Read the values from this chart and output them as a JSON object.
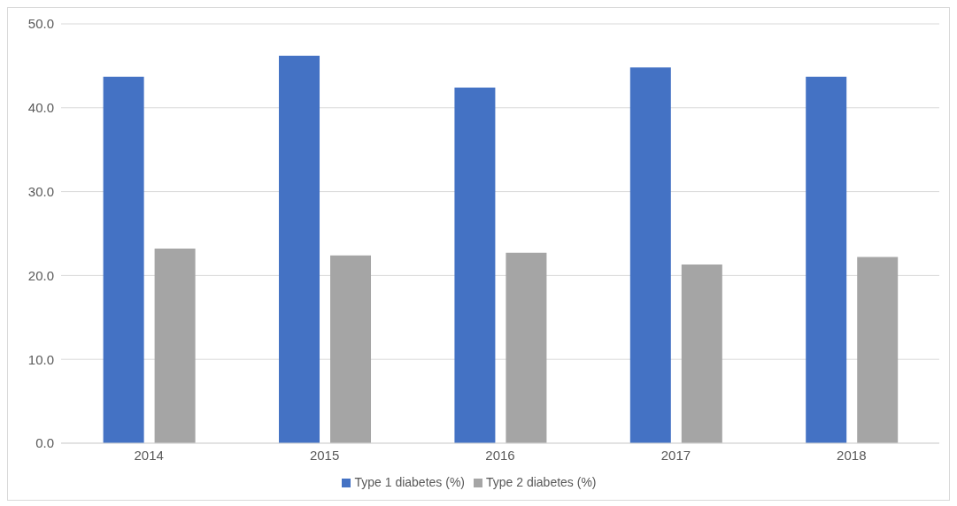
{
  "chart_data": {
    "type": "bar",
    "categories": [
      "2014",
      "2015",
      "2016",
      "2017",
      "2018"
    ],
    "series": [
      {
        "name": "Type 1 diabetes (%)",
        "color": "#4472c4",
        "values": [
          43.7,
          46.2,
          42.4,
          44.8,
          43.7
        ]
      },
      {
        "name": "Type 2 diabetes (%)",
        "color": "#a5a5a5",
        "values": [
          23.2,
          22.4,
          22.7,
          21.3,
          22.2
        ]
      }
    ],
    "ylim": [
      0,
      50
    ],
    "yticks": [
      {
        "value": 0,
        "label": "0.0"
      },
      {
        "value": 10,
        "label": "10.0"
      },
      {
        "value": 20,
        "label": "20.0"
      },
      {
        "value": 30,
        "label": "30.0"
      },
      {
        "value": 40,
        "label": "40.0"
      },
      {
        "value": 50,
        "label": "50.0"
      }
    ],
    "grid": "y",
    "legend": "bottom"
  }
}
